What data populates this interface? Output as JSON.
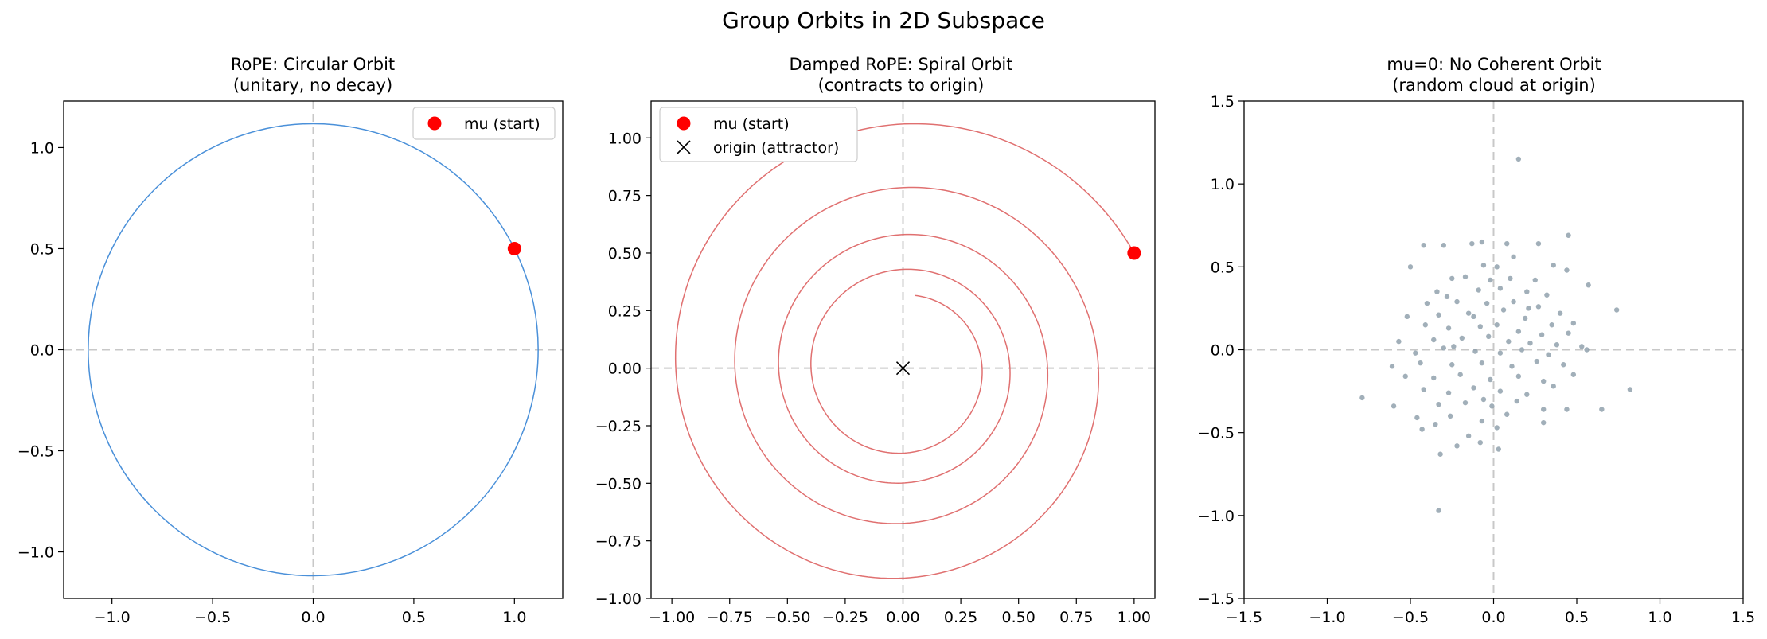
{
  "figure_title": "Group Orbits in 2D Subspace",
  "colors": {
    "circle": "#4a90d9",
    "spiral": "#e07070",
    "start_marker": "#ff0000",
    "cloud": "#8a9ba8",
    "zero_lines": "#c8c8c8"
  },
  "chart_data": [
    {
      "type": "line",
      "title_line1": "RoPE: Circular Orbit",
      "title_line2": "(unitary, no decay)",
      "xlim": [
        -1.24,
        1.24
      ],
      "ylim": [
        -1.23,
        1.23
      ],
      "xticks": [
        -1.0,
        -0.5,
        0.0,
        0.5,
        1.0
      ],
      "xtick_labels": [
        "−1.0",
        "−0.5",
        "0.0",
        "0.5",
        "1.0"
      ],
      "yticks": [
        -1.0,
        -0.5,
        0.0,
        0.5,
        1.0
      ],
      "ytick_labels": [
        "−1.0",
        "−0.5",
        "0.0",
        "0.5",
        "1.0"
      ],
      "orbit": {
        "kind": "circle",
        "radius": 1.118
      },
      "start": {
        "x": 1.0,
        "y": 0.5
      },
      "legend": [
        {
          "label": "mu (start)",
          "marker": "dot"
        }
      ],
      "legend_position": "upper right"
    },
    {
      "type": "line",
      "title_line1": "Damped RoPE: Spiral Orbit",
      "title_line2": "(contracts to origin)",
      "xlim": [
        -1.09,
        1.09
      ],
      "ylim": [
        -1.0,
        1.16
      ],
      "xticks": [
        -1.0,
        -0.75,
        -0.5,
        -0.25,
        0.0,
        0.25,
        0.5,
        0.75,
        1.0
      ],
      "xtick_labels": [
        "−1.00",
        "−0.75",
        "−0.50",
        "−0.25",
        "0.00",
        "0.25",
        "0.50",
        "0.75",
        "1.00"
      ],
      "yticks": [
        -1.0,
        -0.75,
        -0.5,
        -0.25,
        0.0,
        0.25,
        0.5,
        0.75,
        1.0
      ],
      "ytick_labels": [
        "−1.00",
        "−0.75",
        "−0.50",
        "−0.25",
        "0.00",
        "0.25",
        "0.50",
        "0.75",
        "1.00"
      ],
      "orbit": {
        "kind": "spiral",
        "r0": 1.118,
        "theta0": 0.4636,
        "turns": 4.15,
        "r_end": 0.32
      },
      "start": {
        "x": 1.0,
        "y": 0.5
      },
      "attractor": {
        "x": 0.0,
        "y": 0.0
      },
      "legend": [
        {
          "label": "mu (start)",
          "marker": "dot"
        },
        {
          "label": "origin (attractor)",
          "marker": "x"
        }
      ],
      "legend_position": "upper left"
    },
    {
      "type": "scatter",
      "title_line1": "mu=0: No Coherent Orbit",
      "title_line2": "(random cloud at origin)",
      "xlim": [
        -1.5,
        1.5
      ],
      "ylim": [
        -1.5,
        1.5
      ],
      "xticks": [
        -1.5,
        -1.0,
        -0.5,
        0.0,
        0.5,
        1.0,
        1.5
      ],
      "xtick_labels": [
        "−1.5",
        "−1.0",
        "−0.5",
        "0.0",
        "0.5",
        "1.0",
        "1.5"
      ],
      "yticks": [
        -1.5,
        -1.0,
        -0.5,
        0.0,
        0.5,
        1.0,
        1.5
      ],
      "ytick_labels": [
        "−1.5",
        "−1.0",
        "−0.5",
        "0.0",
        "0.5",
        "1.0",
        "1.5"
      ],
      "points": [
        [
          0.15,
          1.15
        ],
        [
          0.45,
          0.69
        ],
        [
          -0.42,
          0.63
        ],
        [
          -0.3,
          0.63
        ],
        [
          -0.13,
          0.64
        ],
        [
          -0.07,
          0.65
        ],
        [
          0.08,
          0.64
        ],
        [
          0.27,
          0.64
        ],
        [
          -0.5,
          0.5
        ],
        [
          0.36,
          0.51
        ],
        [
          0.12,
          0.56
        ],
        [
          0.02,
          0.5
        ],
        [
          -0.06,
          0.51
        ],
        [
          -0.25,
          0.43
        ],
        [
          -0.17,
          0.44
        ],
        [
          -0.02,
          0.42
        ],
        [
          0.1,
          0.43
        ],
        [
          0.25,
          0.42
        ],
        [
          0.44,
          0.48
        ],
        [
          0.57,
          0.39
        ],
        [
          0.74,
          0.24
        ],
        [
          -0.34,
          0.35
        ],
        [
          -0.28,
          0.32
        ],
        [
          -0.09,
          0.36
        ],
        [
          0.04,
          0.37
        ],
        [
          0.2,
          0.35
        ],
        [
          0.32,
          0.33
        ],
        [
          -0.4,
          0.28
        ],
        [
          -0.22,
          0.29
        ],
        [
          -0.04,
          0.28
        ],
        [
          0.12,
          0.29
        ],
        [
          0.27,
          0.26
        ],
        [
          0.4,
          0.22
        ],
        [
          -0.52,
          0.2
        ],
        [
          -0.33,
          0.21
        ],
        [
          -0.15,
          0.22
        ],
        [
          0.06,
          0.24
        ],
        [
          0.19,
          0.19
        ],
        [
          0.35,
          0.15
        ],
        [
          0.48,
          0.16
        ],
        [
          -0.41,
          0.15
        ],
        [
          -0.27,
          0.13
        ],
        [
          -0.08,
          0.14
        ],
        [
          0.02,
          0.15
        ],
        [
          0.15,
          0.11
        ],
        [
          0.29,
          0.09
        ],
        [
          0.45,
          0.1
        ],
        [
          -0.57,
          0.05
        ],
        [
          -0.36,
          0.06
        ],
        [
          -0.19,
          0.07
        ],
        [
          -0.03,
          0.08
        ],
        [
          0.09,
          0.05
        ],
        [
          0.22,
          0.04
        ],
        [
          0.38,
          0.03
        ],
        [
          0.53,
          0.02
        ],
        [
          -0.47,
          -0.02
        ],
        [
          -0.3,
          0.01
        ],
        [
          -0.11,
          -0.01
        ],
        [
          0.04,
          -0.02
        ],
        [
          0.17,
          0.0
        ],
        [
          0.33,
          -0.03
        ],
        [
          0.56,
          0.0
        ],
        [
          -0.61,
          -0.1
        ],
        [
          -0.44,
          -0.08
        ],
        [
          -0.25,
          -0.09
        ],
        [
          -0.07,
          -0.08
        ],
        [
          0.11,
          -0.1
        ],
        [
          0.26,
          -0.07
        ],
        [
          0.42,
          -0.09
        ],
        [
          -0.53,
          -0.16
        ],
        [
          -0.36,
          -0.17
        ],
        [
          -0.2,
          -0.15
        ],
        [
          -0.02,
          -0.18
        ],
        [
          0.15,
          -0.16
        ],
        [
          0.3,
          -0.19
        ],
        [
          0.48,
          -0.15
        ],
        [
          -0.42,
          -0.24
        ],
        [
          -0.27,
          -0.26
        ],
        [
          -0.12,
          -0.23
        ],
        [
          0.04,
          -0.25
        ],
        [
          0.2,
          -0.27
        ],
        [
          0.36,
          -0.22
        ],
        [
          0.82,
          -0.24
        ],
        [
          -0.6,
          -0.34
        ],
        [
          -0.33,
          -0.33
        ],
        [
          -0.17,
          -0.32
        ],
        [
          -0.01,
          -0.34
        ],
        [
          0.14,
          -0.31
        ],
        [
          0.3,
          -0.36
        ],
        [
          0.44,
          -0.36
        ],
        [
          -0.46,
          -0.41
        ],
        [
          -0.26,
          -0.4
        ],
        [
          -0.07,
          -0.43
        ],
        [
          0.08,
          -0.39
        ],
        [
          0.3,
          -0.44
        ],
        [
          0.65,
          -0.36
        ],
        [
          -0.43,
          -0.48
        ],
        [
          -0.35,
          -0.45
        ],
        [
          -0.15,
          -0.52
        ],
        [
          0.02,
          -0.47
        ],
        [
          -0.79,
          -0.29
        ],
        [
          -0.22,
          -0.58
        ],
        [
          -0.08,
          -0.56
        ],
        [
          0.03,
          -0.6
        ],
        [
          -0.32,
          -0.63
        ],
        [
          -0.33,
          -0.97
        ],
        [
          -0.12,
          0.2
        ],
        [
          -0.06,
          -0.3
        ],
        [
          0.21,
          0.25
        ],
        [
          -0.24,
          0.02
        ]
      ]
    }
  ]
}
